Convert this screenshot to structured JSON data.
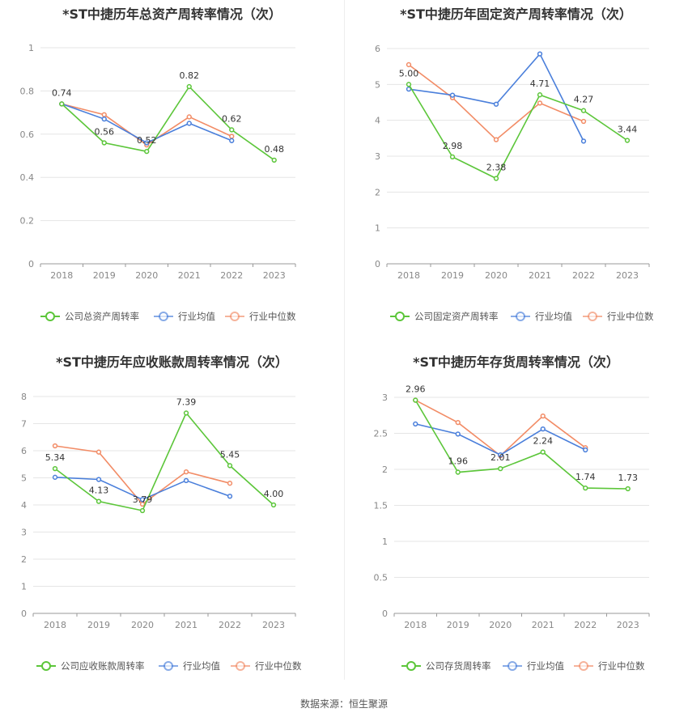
{
  "source_label": "数据来源：恒生聚源",
  "colors": {
    "company": "#5cc63a",
    "avg": "#4a7fdb",
    "median": "#f28c66",
    "grid": "#e5e5e5",
    "axis": "#999999",
    "tick": "#888888",
    "label": "#333333"
  },
  "chart_data": [
    {
      "type": "line",
      "title": "*ST中捷历年总资产周转率情况（次）",
      "categories": [
        "2018",
        "2019",
        "2020",
        "2021",
        "2022",
        "2023"
      ],
      "ylim": [
        0,
        1
      ],
      "yticks": [
        "0",
        "0.2",
        "0.4",
        "0.6",
        "0.8",
        "1"
      ],
      "series": [
        {
          "name": "公司总资产周转率",
          "key": "company",
          "values": [
            0.74,
            0.56,
            0.52,
            0.82,
            0.62,
            0.48
          ],
          "labels": [
            "0.74",
            "0.56",
            "0.52",
            "0.82",
            "0.62",
            "0.48"
          ]
        },
        {
          "name": "行业均值",
          "key": "avg",
          "values": [
            0.74,
            0.67,
            0.56,
            0.65,
            0.57,
            null
          ]
        },
        {
          "name": "行业中位数",
          "key": "median",
          "values": [
            0.74,
            0.69,
            0.55,
            0.68,
            0.59,
            null
          ]
        }
      ]
    },
    {
      "type": "line",
      "title": "*ST中捷历年固定资产周转率情况（次）",
      "categories": [
        "2018",
        "2019",
        "2020",
        "2021",
        "2022",
        "2023"
      ],
      "ylim": [
        0,
        6
      ],
      "yticks": [
        "0",
        "1",
        "2",
        "3",
        "4",
        "5",
        "6"
      ],
      "series": [
        {
          "name": "公司固定资产周转率",
          "key": "company",
          "values": [
            5.0,
            2.98,
            2.38,
            4.71,
            4.27,
            3.44
          ],
          "labels": [
            "5.00",
            "2.98",
            "2.38",
            "4.71",
            "4.27",
            "3.44"
          ]
        },
        {
          "name": "行业均值",
          "key": "avg",
          "values": [
            4.87,
            4.7,
            4.45,
            5.85,
            3.42,
            null
          ]
        },
        {
          "name": "行业中位数",
          "key": "median",
          "values": [
            5.55,
            4.63,
            3.46,
            4.48,
            3.97,
            null
          ]
        }
      ]
    },
    {
      "type": "line",
      "title": "*ST中捷历年应收账款周转率情况（次）",
      "categories": [
        "2018",
        "2019",
        "2020",
        "2021",
        "2022",
        "2023"
      ],
      "ylim": [
        0,
        8
      ],
      "yticks": [
        "0",
        "1",
        "2",
        "3",
        "4",
        "5",
        "6",
        "7",
        "8"
      ],
      "series": [
        {
          "name": "公司应收账款周转率",
          "key": "company",
          "values": [
            5.34,
            4.13,
            3.79,
            7.39,
            5.45,
            4.0
          ],
          "labels": [
            "5.34",
            "4.13",
            "3.79",
            "7.39",
            "5.45",
            "4.00"
          ]
        },
        {
          "name": "行业均值",
          "key": "avg",
          "values": [
            5.02,
            4.94,
            4.2,
            4.9,
            4.32,
            null
          ]
        },
        {
          "name": "行业中位数",
          "key": "median",
          "values": [
            6.18,
            5.95,
            4.03,
            5.22,
            4.8,
            null
          ]
        }
      ]
    },
    {
      "type": "line",
      "title": "*ST中捷历年存货周转率情况（次）",
      "categories": [
        "2018",
        "2019",
        "2020",
        "2021",
        "2022",
        "2023"
      ],
      "ylim": [
        0,
        3
      ],
      "yticks": [
        "0",
        "0.5",
        "1",
        "1.5",
        "2",
        "2.5",
        "3"
      ],
      "series": [
        {
          "name": "公司存货周转率",
          "key": "company",
          "values": [
            2.96,
            1.96,
            2.01,
            2.24,
            1.74,
            1.73
          ],
          "labels": [
            "2.96",
            "1.96",
            "2.01",
            "2.24",
            "1.74",
            "1.73"
          ]
        },
        {
          "name": "行业均值",
          "key": "avg",
          "values": [
            2.63,
            2.49,
            2.2,
            2.56,
            2.27,
            null
          ]
        },
        {
          "name": "行业中位数",
          "key": "median",
          "values": [
            2.96,
            2.65,
            2.19,
            2.74,
            2.3,
            null
          ]
        }
      ]
    }
  ]
}
